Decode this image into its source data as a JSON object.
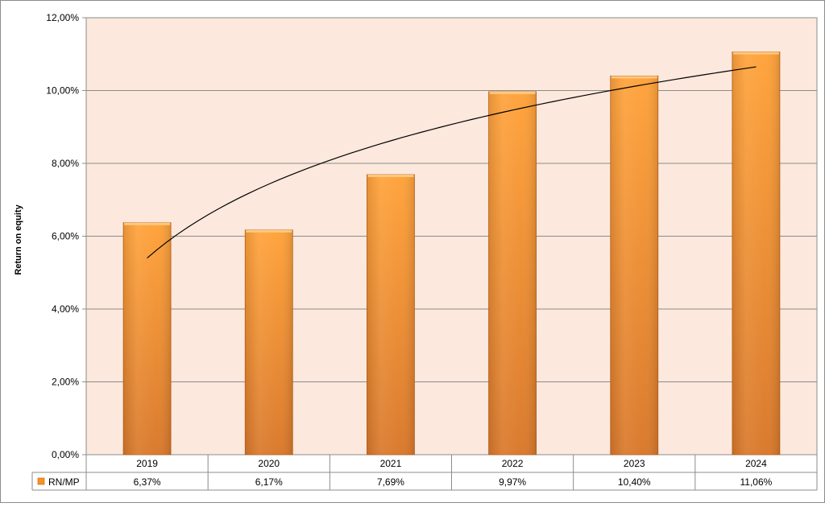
{
  "chart_data": {
    "type": "bar",
    "title": "",
    "xlabel": "",
    "ylabel": "Return on equity",
    "categories": [
      "2019",
      "2020",
      "2021",
      "2022",
      "2023",
      "2024"
    ],
    "series": [
      {
        "name": "RN/MP",
        "values": [
          6.37,
          6.17,
          7.69,
          9.97,
          10.4,
          11.06
        ],
        "value_labels": [
          "6,37%",
          "6,17%",
          "7,69%",
          "9,97%",
          "10,40%",
          "11,06%"
        ]
      }
    ],
    "ylim": [
      0,
      12
    ],
    "yticks": [
      0,
      2,
      4,
      6,
      8,
      10,
      12
    ],
    "ytick_labels": [
      "0,00%",
      "2,00%",
      "4,00%",
      "6,00%",
      "8,00%",
      "10,00%",
      "12,00%"
    ],
    "trendline": {
      "type": "logarithmic",
      "start_value": 5.4,
      "end_value": 10.65
    },
    "grid": true,
    "legend": "data-table",
    "colors": {
      "plot_background": "#fce8dc",
      "bar_light": "#ffa23a",
      "bar_dark": "#d9782a",
      "gridline": "#8c8c8c",
      "trendline": "#000000",
      "legend_key": "#f7931e"
    }
  }
}
